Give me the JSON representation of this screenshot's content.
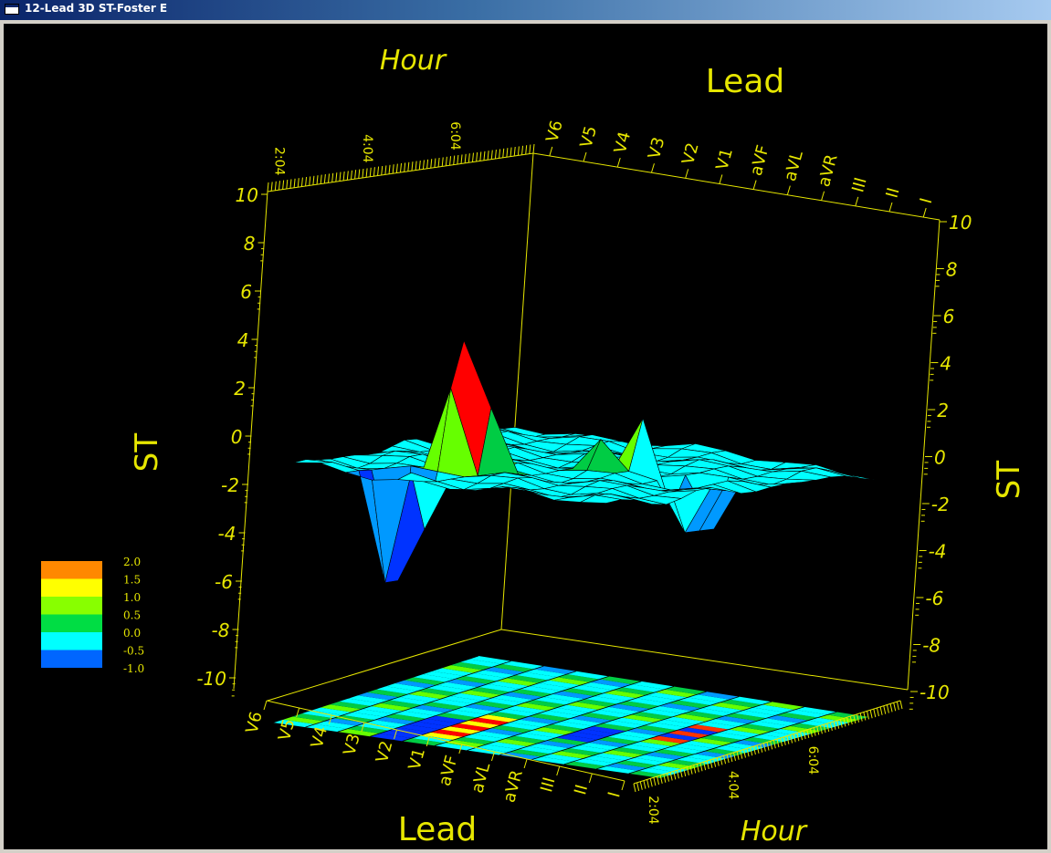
{
  "window": {
    "title": "12-Lead 3D ST-Foster E"
  },
  "colors": {
    "background": "#000000",
    "axis": "#e6e600",
    "bands": [
      "#0033ff",
      "#0099ff",
      "#00ffff",
      "#00cc44",
      "#66ff00",
      "#ffff00",
      "#ff9900",
      "#ff0000"
    ]
  },
  "chart_data": {
    "type": "surface3d",
    "axes": {
      "st": {
        "label": "ST",
        "ticks": [
          "-10",
          "-8",
          "-6",
          "-4",
          "-2",
          "0",
          "2",
          "4",
          "6",
          "8",
          "10"
        ],
        "range": [
          -10,
          10
        ]
      },
      "lead": {
        "label": "Lead",
        "ticks": [
          "V6",
          "V5",
          "V4",
          "V3",
          "V2",
          "V1",
          "aVF",
          "aVL",
          "aVR",
          "III",
          "II",
          "I"
        ]
      },
      "hour": {
        "label": "Hour",
        "ticks": [
          "2:04",
          "4:04",
          "6:04"
        ]
      }
    },
    "colorbar": {
      "ticks": [
        "2.0",
        "1.5",
        "1.0",
        "0.5",
        "0.0",
        "-0.5",
        "-1.0"
      ],
      "colors": [
        "#ff8800",
        "#ffff00",
        "#88ff00",
        "#00dd44",
        "#00ffff",
        "#0066ff"
      ]
    },
    "features": [
      {
        "lead": "V3",
        "hour_fraction": 0.3,
        "st_peak": 5.0
      },
      {
        "lead": "V3",
        "hour_fraction": 0.1,
        "st_peak": -5.5
      },
      {
        "lead": "aVR",
        "hour_fraction": 0.55,
        "st_peak": 1.5
      },
      {
        "lead": "aVF",
        "hour_fraction": 0.45,
        "st_peak": 1.0
      },
      {
        "lead": "II",
        "hour_fraction": 0.45,
        "st_peak": -3.0
      }
    ]
  }
}
